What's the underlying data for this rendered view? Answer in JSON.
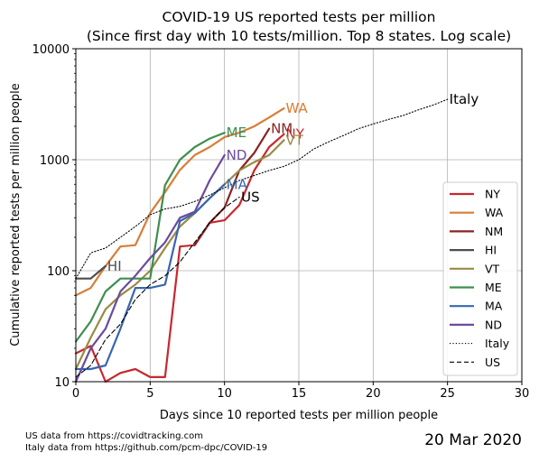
{
  "chart_data": {
    "type": "line",
    "title_line1": "COVID-19 US reported tests per million",
    "title_line2": "(Since first day with 10 tests/million. Top 8 states. Log scale)",
    "xlabel": "Days since 10 reported tests per million people",
    "ylabel": "Cumulative reported tests per million people",
    "xlim": [
      0,
      30
    ],
    "ylim": [
      10,
      10000
    ],
    "y_scale": "log",
    "grid": true,
    "legend_position": "lower-right",
    "x_ticks": [
      "0",
      "5",
      "10",
      "15",
      "20",
      "25",
      "30"
    ],
    "y_ticks": [
      "10",
      "100",
      "1000",
      "10000"
    ],
    "series": [
      {
        "name": "NY",
        "label": "NY",
        "color": "#c8282d",
        "dash": "solid",
        "x": [
          0,
          1,
          2,
          3,
          4,
          5,
          6,
          7,
          8,
          9,
          10,
          11,
          12,
          13,
          14
        ],
        "y": [
          18,
          21,
          10,
          12,
          13,
          11,
          11,
          165,
          170,
          270,
          285,
          390,
          800,
          1300,
          1700
        ]
      },
      {
        "name": "WA",
        "label": "WA",
        "color": "#d97d36",
        "dash": "solid",
        "x": [
          0,
          1,
          2,
          3,
          4,
          5,
          6,
          7,
          8,
          9,
          10,
          11,
          12,
          13,
          14
        ],
        "y": [
          60,
          70,
          110,
          165,
          170,
          330,
          510,
          810,
          1100,
          1300,
          1600,
          1750,
          2000,
          2400,
          2900
        ]
      },
      {
        "name": "NM",
        "label": "NM",
        "color": "#8b2323",
        "dash": "solid",
        "x": [
          8,
          9,
          10,
          11,
          12,
          13
        ],
        "y": [
          170,
          270,
          370,
          800,
          1150,
          1900
        ]
      },
      {
        "name": "HI",
        "label": "HI",
        "color": "#4d4d4d",
        "dash": "solid",
        "x": [
          0,
          1,
          2
        ],
        "y": [
          85,
          85,
          110
        ]
      },
      {
        "name": "VT",
        "label": "VT",
        "color": "#9a8a44",
        "dash": "solid",
        "x": [
          0,
          1,
          2,
          3,
          4,
          5,
          6,
          7,
          8,
          9,
          10,
          11,
          12,
          13,
          14
        ],
        "y": [
          13,
          25,
          45,
          60,
          75,
          100,
          160,
          250,
          330,
          450,
          600,
          800,
          950,
          1100,
          1500
        ]
      },
      {
        "name": "ME",
        "label": "ME",
        "color": "#3d8f4f",
        "dash": "solid",
        "x": [
          0,
          1,
          2,
          3,
          4,
          5,
          6,
          7,
          8,
          9,
          10
        ],
        "y": [
          23,
          35,
          65,
          85,
          85,
          85,
          590,
          1000,
          1300,
          1550,
          1750
        ]
      },
      {
        "name": "MA",
        "label": "MA",
        "color": "#3866b0",
        "dash": "solid",
        "x": [
          0,
          1,
          2,
          3,
          4,
          5,
          6,
          7,
          8,
          9,
          10
        ],
        "y": [
          13,
          13,
          14,
          30,
          70,
          70,
          75,
          280,
          330,
          450,
          600
        ]
      },
      {
        "name": "ND",
        "label": "ND",
        "color": "#6a4c9c",
        "dash": "solid",
        "x": [
          0,
          1,
          2,
          3,
          4,
          5,
          6,
          7,
          8,
          9,
          10
        ],
        "y": [
          10,
          20,
          30,
          65,
          90,
          130,
          180,
          300,
          340,
          650,
          1100
        ]
      },
      {
        "name": "Italy",
        "label": "Italy",
        "color": "#000000",
        "dash": "dotted",
        "x": [
          0,
          1,
          2,
          3,
          4,
          5,
          6,
          7,
          8,
          9,
          10,
          11,
          12,
          13,
          14,
          15,
          16,
          17,
          18,
          19,
          20,
          21,
          22,
          23,
          24,
          25
        ],
        "y": [
          85,
          145,
          160,
          200,
          250,
          320,
          360,
          380,
          420,
          480,
          560,
          650,
          720,
          800,
          870,
          1000,
          1250,
          1450,
          1650,
          1900,
          2100,
          2300,
          2500,
          2800,
          3100,
          3500
        ]
      },
      {
        "name": "US",
        "label": "US",
        "color": "#000000",
        "dash": "dashed",
        "x": [
          0,
          1,
          2,
          3,
          4,
          5,
          6,
          7,
          8,
          9,
          10,
          11
        ],
        "y": [
          11,
          14,
          24,
          33,
          55,
          75,
          90,
          120,
          180,
          270,
          370,
          460
        ]
      }
    ]
  },
  "footer": {
    "source_line1": "US data from https://covidtracking.com",
    "source_line2": "Italy data from https://github.com/pcm-dpc/COVID-19",
    "date": "20 Mar 2020"
  }
}
